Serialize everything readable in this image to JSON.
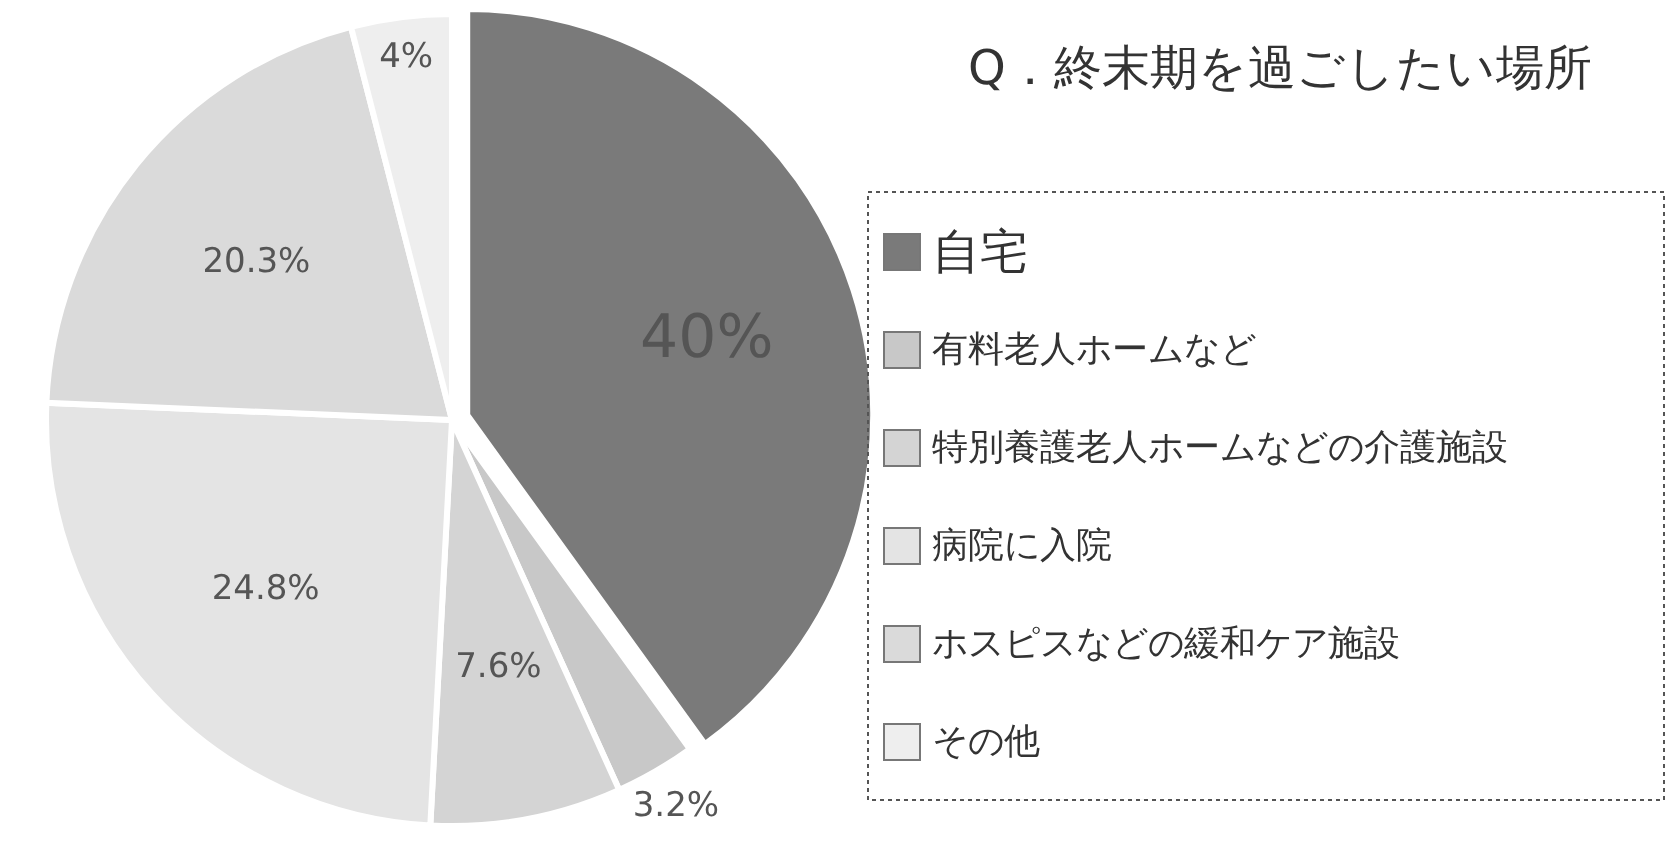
{
  "chart_data": {
    "type": "pie",
    "title": "Q．終末期を過ごしたい場所",
    "categories": [
      "自宅",
      "有料老人ホームなど",
      "特別養護老人ホームなどの介護施設",
      "病院に入院",
      "ホスピスなどの緩和ケア施設",
      "その他"
    ],
    "values": [
      40,
      3.2,
      7.6,
      24.8,
      20.3,
      4
    ],
    "value_labels": [
      "40%",
      "3.2%",
      "7.6%",
      "24.8%",
      "20.3%",
      "4%"
    ],
    "colors": [
      "#7a7a7a",
      "#c8c8c8",
      "#d4d4d4",
      "#e4e4e4",
      "#dadada",
      "#eeeeee"
    ],
    "legend": "right"
  }
}
